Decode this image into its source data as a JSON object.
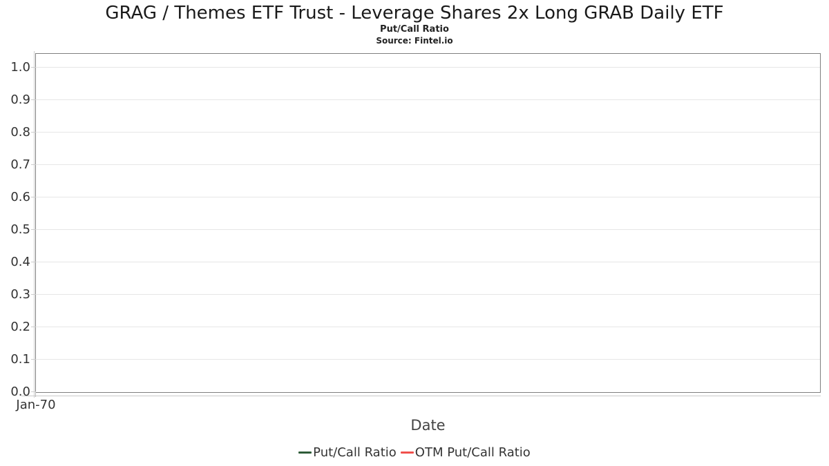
{
  "chart_data": {
    "type": "line",
    "title": "GRAG / Themes ETF Trust - Leverage Shares 2x Long GRAB Daily ETF",
    "subtitle": "Put/Call Ratio",
    "source": "Source: Fintel.io",
    "xlabel": "Date",
    "ylabel": "",
    "x_ticks": [
      "Jan-70"
    ],
    "y_ticks": [
      0,
      0.1,
      0.2,
      0.3,
      0.4,
      0.5,
      0.6,
      0.7,
      0.8,
      0.9,
      1
    ],
    "ylim": [
      0.0,
      1.05
    ],
    "grid": "horizontal",
    "legend_position": "bottom-center",
    "series": [
      {
        "name": "Put/Call Ratio",
        "color": "#2e5c38",
        "x": [],
        "values": []
      },
      {
        "name": "OTM Put/Call Ratio",
        "color": "#f0504c",
        "x": [],
        "values": []
      }
    ]
  },
  "colors": {
    "grid": "#e6e6e6",
    "frame": "#7f7f7f",
    "axis_line": "#cccccc",
    "tick_text": "#333333",
    "axis_title_text": "#444444",
    "title_text": "#1a1a1a"
  }
}
